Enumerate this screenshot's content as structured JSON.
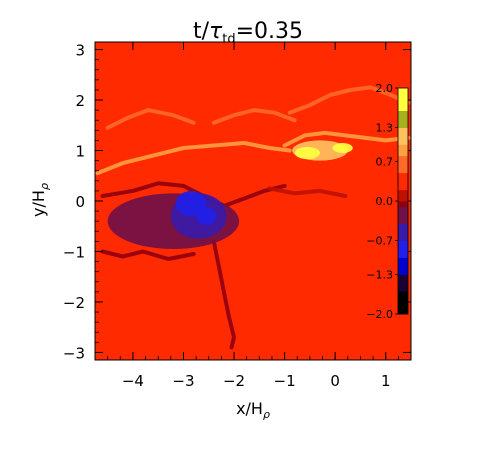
{
  "chart_data": {
    "type": "heatmap",
    "title": {
      "main": "t/",
      "symbol": "τ",
      "subscript": "td",
      "suffix": "=0.35"
    },
    "xlabel": {
      "main": "x/H",
      "subscript": "ρ"
    },
    "ylabel": {
      "main": "y/H",
      "subscript": "ρ"
    },
    "xlim": [
      -4.75,
      1.5
    ],
    "ylim": [
      -3.15,
      3.15
    ],
    "x_ticks": [
      -4,
      -3,
      -2,
      -1,
      0,
      1
    ],
    "x_tick_labels": [
      "−4",
      "−3",
      "−2",
      "−1",
      "0",
      "1"
    ],
    "y_ticks": [
      -3,
      -2,
      -1,
      0,
      1,
      2,
      3
    ],
    "y_tick_labels": [
      "−3",
      "−2",
      "−1",
      "0",
      "1",
      "2",
      "3"
    ],
    "grid": false,
    "background_value": 0.25,
    "features": [
      {
        "kind": "filament",
        "x": [
          -4.7,
          -4.2,
          -3.6,
          -3.0,
          -2.4,
          -1.8,
          -1.3,
          -0.9
        ],
        "y": [
          0.55,
          0.75,
          0.9,
          1.05,
          1.1,
          1.15,
          1.05,
          1.0
        ],
        "value": 0.9
      },
      {
        "kind": "filament",
        "x": [
          -4.5,
          -4.1,
          -3.7,
          -3.2,
          -2.8
        ],
        "y": [
          1.45,
          1.65,
          1.8,
          1.7,
          1.55
        ],
        "value": 0.75
      },
      {
        "kind": "filament",
        "x": [
          -2.4,
          -2.0,
          -1.6,
          -1.2,
          -0.8
        ],
        "y": [
          1.55,
          1.7,
          1.8,
          1.75,
          1.6
        ],
        "value": 0.75
      },
      {
        "kind": "filament",
        "x": [
          -0.9,
          -0.5,
          -0.1,
          0.3,
          0.7,
          1.1,
          1.45
        ],
        "y": [
          1.75,
          1.9,
          2.1,
          2.2,
          2.25,
          2.1,
          1.95
        ],
        "value": 0.8
      },
      {
        "kind": "filament",
        "x": [
          -1.0,
          -0.6,
          -0.2,
          0.2,
          0.6,
          1.0,
          1.45
        ],
        "y": [
          1.1,
          1.3,
          1.35,
          1.3,
          1.25,
          1.2,
          1.25
        ],
        "value": 1.0
      },
      {
        "kind": "blob",
        "x": -0.3,
        "y": 1.0,
        "rx": 0.55,
        "ry": 0.2,
        "value": 1.3
      },
      {
        "kind": "blob",
        "x": -0.55,
        "y": 0.95,
        "rx": 0.25,
        "ry": 0.12,
        "value": 1.7
      },
      {
        "kind": "blob",
        "x": 0.15,
        "y": 1.05,
        "rx": 0.2,
        "ry": 0.1,
        "value": 1.7
      },
      {
        "kind": "blob",
        "x": -3.2,
        "y": -0.4,
        "rx": 1.3,
        "ry": 0.55,
        "value": -0.1
      },
      {
        "kind": "blob",
        "x": -2.7,
        "y": -0.3,
        "rx": 0.55,
        "ry": 0.45,
        "value": -0.4
      },
      {
        "kind": "blob",
        "x": -2.85,
        "y": -0.05,
        "rx": 0.3,
        "ry": 0.25,
        "value": -0.9
      },
      {
        "kind": "blob",
        "x": -2.55,
        "y": -0.3,
        "rx": 0.2,
        "ry": 0.18,
        "value": -0.9
      },
      {
        "kind": "filament",
        "x": [
          -4.6,
          -4.0,
          -3.5,
          -3.0,
          -2.6,
          -2.2,
          -1.8,
          -1.4,
          -1.0
        ],
        "y": [
          0.1,
          0.2,
          0.35,
          0.3,
          0.1,
          -0.1,
          0.05,
          0.2,
          0.3
        ],
        "value": -0.05
      },
      {
        "kind": "filament",
        "x": [
          -2.4,
          -2.3,
          -2.2,
          -2.1,
          -2.0,
          -2.05
        ],
        "y": [
          -0.8,
          -1.3,
          -1.8,
          -2.3,
          -2.7,
          -2.9
        ],
        "value": -0.05
      },
      {
        "kind": "filament",
        "x": [
          -4.6,
          -4.2,
          -3.8,
          -3.3,
          -2.8
        ],
        "y": [
          -1.0,
          -1.1,
          -1.0,
          -1.15,
          -1.05
        ],
        "value": -0.05
      },
      {
        "kind": "filament",
        "x": [
          -1.3,
          -0.8,
          -0.3,
          0.2
        ],
        "y": [
          0.25,
          0.15,
          0.2,
          0.1
        ],
        "value": 0.05
      }
    ],
    "colorbar": {
      "ticks": [
        2.0,
        1.3,
        0.7,
        0.0,
        -0.7,
        -1.3,
        -2.0
      ],
      "tick_labels": [
        "2.0",
        "1.3",
        "0.7",
        "0.0",
        "−0.7",
        "−1.3",
        "−2.0"
      ],
      "range": [
        -2.0,
        2.0
      ],
      "levels": [
        {
          "from": -2.0,
          "to": -1.6,
          "color": "#000000"
        },
        {
          "from": -1.6,
          "to": -1.3,
          "color": "#1a0033"
        },
        {
          "from": -1.3,
          "to": -1.0,
          "color": "#0000d0"
        },
        {
          "from": -1.0,
          "to": -0.7,
          "color": "#2020e8"
        },
        {
          "from": -0.7,
          "to": -0.4,
          "color": "#3a1aa8"
        },
        {
          "from": -0.4,
          "to": -0.1,
          "color": "#701048"
        },
        {
          "from": -0.1,
          "to": 0.0,
          "color": "#900010"
        },
        {
          "from": 0.0,
          "to": 0.2,
          "color": "#c01000"
        },
        {
          "from": 0.2,
          "to": 0.5,
          "color": "#ff2a00"
        },
        {
          "from": 0.5,
          "to": 0.8,
          "color": "#ff6a2a"
        },
        {
          "from": 0.8,
          "to": 1.0,
          "color": "#ffa040"
        },
        {
          "from": 1.0,
          "to": 1.3,
          "color": "#ffc060"
        },
        {
          "from": 1.3,
          "to": 1.6,
          "color": "#a8b020"
        },
        {
          "from": 1.6,
          "to": 2.0,
          "color": "#ffff40"
        }
      ]
    }
  }
}
